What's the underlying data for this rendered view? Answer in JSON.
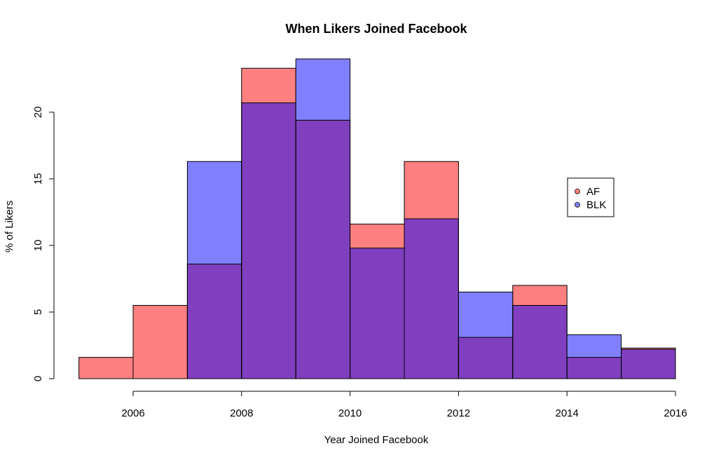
{
  "chart_data": {
    "type": "histogram",
    "title": "When Likers Joined Facebook",
    "xlabel": "Year Joined Facebook",
    "ylabel": "% of Likers",
    "xlim": [
      2004.7,
      2016
    ],
    "ylim": [
      0,
      24
    ],
    "x_ticks": [
      2006,
      2008,
      2010,
      2012,
      2014,
      2016
    ],
    "y_ticks": [
      0,
      5,
      10,
      15,
      20
    ],
    "bins": [
      [
        2005,
        2006
      ],
      [
        2006,
        2007
      ],
      [
        2007,
        2008
      ],
      [
        2008,
        2009
      ],
      [
        2009,
        2010
      ],
      [
        2010,
        2011
      ],
      [
        2011,
        2012
      ],
      [
        2012,
        2013
      ],
      [
        2013,
        2014
      ],
      [
        2014,
        2015
      ],
      [
        2015,
        2016
      ]
    ],
    "series": [
      {
        "name": "AF",
        "color": "#ff8080",
        "values": [
          1.6,
          5.5,
          8.6,
          23.3,
          19.4,
          11.6,
          16.3,
          3.1,
          7.0,
          1.6,
          2.3
        ]
      },
      {
        "name": "BLK",
        "color": "#8080ff",
        "values": [
          0,
          0,
          16.3,
          20.7,
          24.0,
          9.8,
          12.0,
          6.5,
          5.5,
          3.3,
          2.2
        ]
      }
    ],
    "overlap_color": "#803fbf",
    "legend": {
      "position": "right",
      "entries": [
        "AF",
        "BLK"
      ]
    },
    "grid": false
  }
}
